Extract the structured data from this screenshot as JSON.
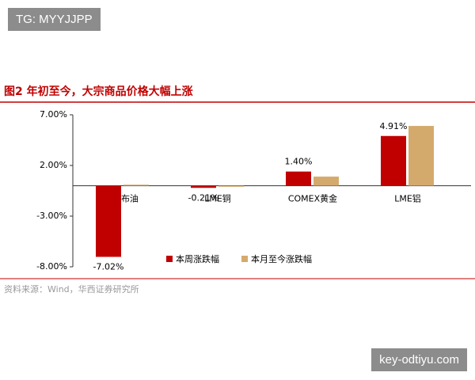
{
  "watermark": "TG: MYYJJPP",
  "site": "key-odtiyu.com",
  "chart_data": {
    "type": "bar",
    "title": "图2  年初至今，大宗商品价格大幅上涨",
    "source": "资料来源：Wind，华西证券研究所",
    "categories": [
      "ICE布油",
      "LME铜",
      "COMEX黄金",
      "LME铝"
    ],
    "series": [
      {
        "name": "本周涨跌幅",
        "color": "#c00000",
        "values": [
          -7.02,
          -0.21,
          1.4,
          4.91
        ],
        "value_labels": [
          "-7.02%",
          "-0.21%",
          "1.40%",
          "4.91%"
        ]
      },
      {
        "name": "本月至今涨跌幅",
        "color": "#d4aa6c",
        "values": [
          0.1,
          -0.1,
          0.9,
          5.9
        ]
      }
    ],
    "ylim": [
      -8,
      7
    ],
    "yticks": [
      {
        "value": 7,
        "label": "7.00%"
      },
      {
        "value": 2,
        "label": "2.00%"
      },
      {
        "value": -3,
        "label": "-3.00%"
      },
      {
        "value": -8,
        "label": "-8.00%"
      }
    ]
  }
}
